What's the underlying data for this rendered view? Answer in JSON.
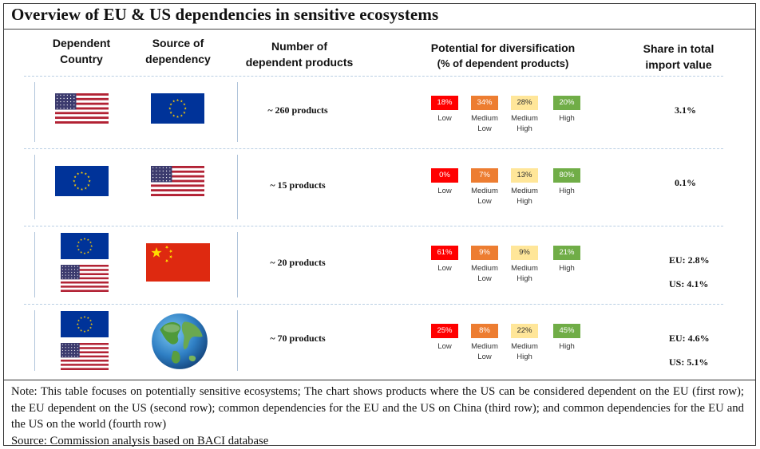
{
  "title": "Overview of EU & US dependencies in sensitive ecosystems",
  "headers": {
    "dependent_country": [
      "Dependent",
      "Country"
    ],
    "source_of_dependency": [
      "Source of",
      "dependency"
    ],
    "number_of_products": [
      "Number of",
      "dependent products"
    ],
    "potential_diversification": [
      "Potential for diversification",
      "(% of dependent products)"
    ],
    "share_import": [
      "Share in total",
      "import value"
    ]
  },
  "colors": {
    "low": "#ff0000",
    "medium_low": "#ed7d31",
    "medium_high": "#ffe699",
    "high": "#70ad47",
    "eu_blue": "#003399",
    "eu_star": "#ffcc00",
    "us_red": "#b22234",
    "us_blue": "#3c3b6e",
    "china_red": "#de2910",
    "china_star": "#ffde00"
  },
  "level_labels": {
    "low": [
      "Low"
    ],
    "medium_low": [
      "Medium",
      "Low"
    ],
    "medium_high": [
      "Medium",
      "High"
    ],
    "high": [
      "High"
    ]
  },
  "rows": [
    {
      "dependent": [
        "us-flag"
      ],
      "source": "eu-flag",
      "products": "~ 260 products",
      "diversification": {
        "low": "18%",
        "medium_low": "34%",
        "medium_high": "28%",
        "high": "20%"
      },
      "share": [
        "3.1%"
      ]
    },
    {
      "dependent": [
        "eu-flag"
      ],
      "source": "us-flag",
      "products": "~ 15 products",
      "diversification": {
        "low": "0%",
        "medium_low": "7%",
        "medium_high": "13%",
        "high": "80%"
      },
      "share": [
        "0.1%"
      ]
    },
    {
      "dependent": [
        "eu-flag",
        "us-flag"
      ],
      "source": "china-flag",
      "products": "~ 20 products",
      "diversification": {
        "low": "61%",
        "medium_low": "9%",
        "medium_high": "9%",
        "high": "21%"
      },
      "share": [
        "EU:  2.8%",
        "US:  4.1%"
      ]
    },
    {
      "dependent": [
        "eu-flag",
        "us-flag"
      ],
      "source": "globe-icon",
      "products": "~ 70 products",
      "diversification": {
        "low": "25%",
        "medium_low": "8%",
        "medium_high": "22%",
        "high": "45%"
      },
      "share": [
        "EU:  4.6%",
        "US:  5.1%"
      ]
    }
  ],
  "note": "Note: This table focuses on potentially sensitive ecosystems; The chart shows products where the US can be considered dependent on the EU (first row); the EU dependent on the US (second row); common dependencies for the EU and the US on China (third row); and common dependencies for the EU and the US on the world (fourth row)",
  "source": "Source: Commission analysis based on BACI database"
}
